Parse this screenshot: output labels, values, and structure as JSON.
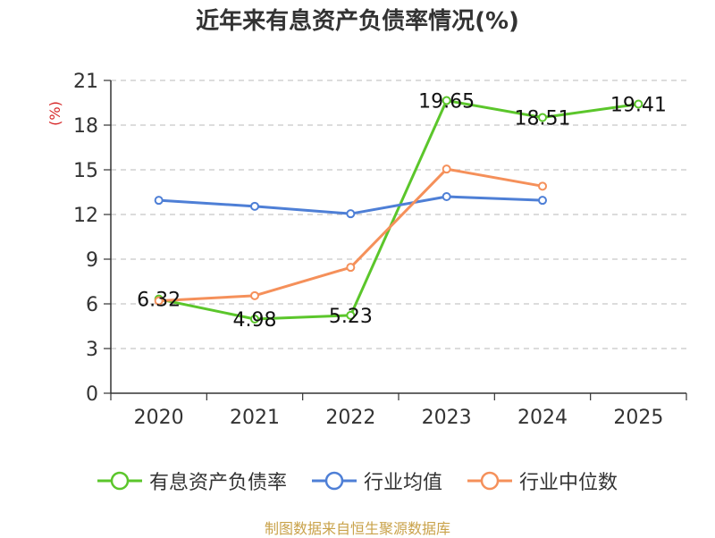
{
  "chart_data": {
    "type": "line",
    "title": "近年来有息资产负债率情况(%)",
    "ylabel": "(%)",
    "categories": [
      "2020",
      "2021",
      "2022",
      "2023",
      "2024",
      "2025"
    ],
    "ylim": [
      0,
      21
    ],
    "yticks": [
      0,
      3,
      6,
      9,
      12,
      15,
      18,
      21
    ],
    "grid": true,
    "legend_position": "bottom",
    "series": [
      {
        "name": "有息资产负债率",
        "color": "#5bc62b",
        "show_labels": true,
        "values": [
          6.32,
          4.98,
          5.23,
          19.65,
          18.51,
          19.41
        ],
        "labels": [
          "6.32",
          "4.98",
          "5.23",
          "19.65",
          "18.51",
          "19.41"
        ]
      },
      {
        "name": "行业均值",
        "color": "#4e7fd6",
        "show_labels": false,
        "values": [
          12.95,
          12.55,
          12.05,
          13.2,
          12.95,
          null
        ]
      },
      {
        "name": "行业中位数",
        "color": "#f5905a",
        "show_labels": false,
        "values": [
          6.2,
          6.55,
          8.45,
          15.05,
          13.9,
          null
        ]
      }
    ]
  },
  "source_note": "制图数据来自恒生聚源数据库"
}
